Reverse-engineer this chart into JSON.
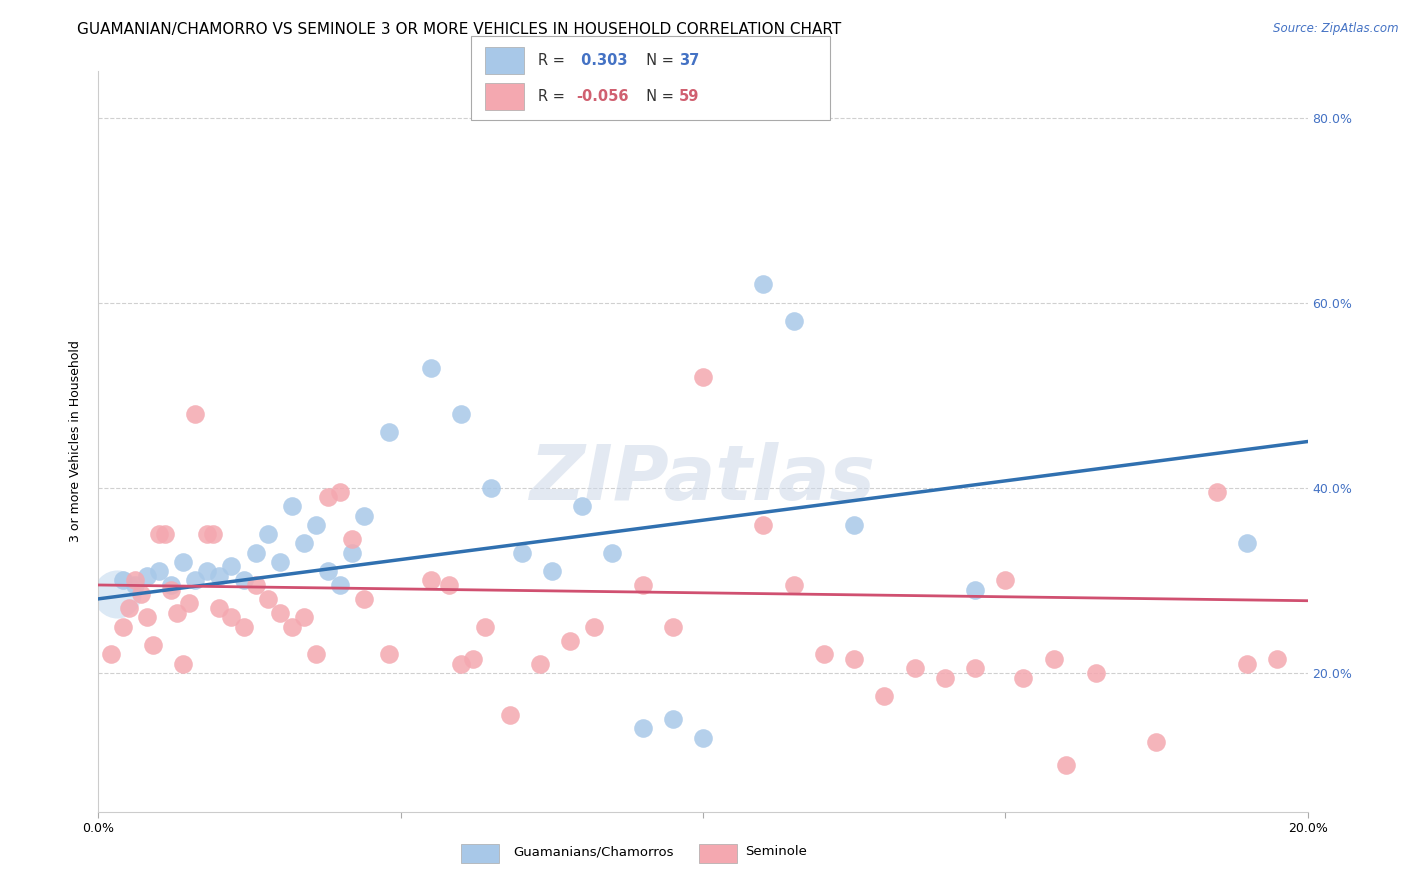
{
  "title": "GUAMANIAN/CHAMORRO VS SEMINOLE 3 OR MORE VEHICLES IN HOUSEHOLD CORRELATION CHART",
  "source": "Source: ZipAtlas.com",
  "ylabel": "3 or more Vehicles in Household",
  "legend_label_blue": "Guamanians/Chamorros",
  "legend_label_pink": "Seminole",
  "blue_color": "#a8c8e8",
  "pink_color": "#f4a8b0",
  "blue_line_color": "#3070b0",
  "pink_line_color": "#d05070",
  "background_color": "#ffffff",
  "watermark": "ZIPatlas",
  "blue_scatter": [
    [
      0.004,
      0.3
    ],
    [
      0.006,
      0.295
    ],
    [
      0.008,
      0.305
    ],
    [
      0.01,
      0.31
    ],
    [
      0.012,
      0.295
    ],
    [
      0.014,
      0.32
    ],
    [
      0.016,
      0.3
    ],
    [
      0.018,
      0.31
    ],
    [
      0.02,
      0.305
    ],
    [
      0.022,
      0.315
    ],
    [
      0.024,
      0.3
    ],
    [
      0.026,
      0.33
    ],
    [
      0.028,
      0.35
    ],
    [
      0.03,
      0.32
    ],
    [
      0.032,
      0.38
    ],
    [
      0.034,
      0.34
    ],
    [
      0.036,
      0.36
    ],
    [
      0.038,
      0.31
    ],
    [
      0.04,
      0.295
    ],
    [
      0.042,
      0.33
    ],
    [
      0.044,
      0.37
    ],
    [
      0.048,
      0.46
    ],
    [
      0.055,
      0.53
    ],
    [
      0.06,
      0.48
    ],
    [
      0.065,
      0.4
    ],
    [
      0.07,
      0.33
    ],
    [
      0.075,
      0.31
    ],
    [
      0.08,
      0.38
    ],
    [
      0.085,
      0.33
    ],
    [
      0.09,
      0.14
    ],
    [
      0.095,
      0.15
    ],
    [
      0.1,
      0.13
    ],
    [
      0.11,
      0.62
    ],
    [
      0.115,
      0.58
    ],
    [
      0.125,
      0.36
    ],
    [
      0.145,
      0.29
    ],
    [
      0.19,
      0.34
    ]
  ],
  "pink_scatter": [
    [
      0.002,
      0.22
    ],
    [
      0.004,
      0.25
    ],
    [
      0.005,
      0.27
    ],
    [
      0.006,
      0.3
    ],
    [
      0.007,
      0.285
    ],
    [
      0.008,
      0.26
    ],
    [
      0.009,
      0.23
    ],
    [
      0.01,
      0.35
    ],
    [
      0.011,
      0.35
    ],
    [
      0.012,
      0.29
    ],
    [
      0.013,
      0.265
    ],
    [
      0.014,
      0.21
    ],
    [
      0.015,
      0.275
    ],
    [
      0.016,
      0.48
    ],
    [
      0.018,
      0.35
    ],
    [
      0.019,
      0.35
    ],
    [
      0.02,
      0.27
    ],
    [
      0.022,
      0.26
    ],
    [
      0.024,
      0.25
    ],
    [
      0.026,
      0.295
    ],
    [
      0.028,
      0.28
    ],
    [
      0.03,
      0.265
    ],
    [
      0.032,
      0.25
    ],
    [
      0.034,
      0.26
    ],
    [
      0.036,
      0.22
    ],
    [
      0.038,
      0.39
    ],
    [
      0.04,
      0.395
    ],
    [
      0.042,
      0.345
    ],
    [
      0.044,
      0.28
    ],
    [
      0.048,
      0.22
    ],
    [
      0.055,
      0.3
    ],
    [
      0.058,
      0.295
    ],
    [
      0.06,
      0.21
    ],
    [
      0.062,
      0.215
    ],
    [
      0.064,
      0.25
    ],
    [
      0.068,
      0.155
    ],
    [
      0.073,
      0.21
    ],
    [
      0.078,
      0.235
    ],
    [
      0.082,
      0.25
    ],
    [
      0.09,
      0.295
    ],
    [
      0.095,
      0.25
    ],
    [
      0.1,
      0.52
    ],
    [
      0.11,
      0.36
    ],
    [
      0.115,
      0.295
    ],
    [
      0.12,
      0.22
    ],
    [
      0.125,
      0.215
    ],
    [
      0.13,
      0.175
    ],
    [
      0.135,
      0.205
    ],
    [
      0.14,
      0.195
    ],
    [
      0.145,
      0.205
    ],
    [
      0.15,
      0.3
    ],
    [
      0.153,
      0.195
    ],
    [
      0.158,
      0.215
    ],
    [
      0.16,
      0.1
    ],
    [
      0.165,
      0.2
    ],
    [
      0.175,
      0.125
    ],
    [
      0.185,
      0.395
    ],
    [
      0.19,
      0.21
    ],
    [
      0.195,
      0.215
    ]
  ],
  "xlim": [
    0.0,
    0.2
  ],
  "ylim": [
    0.05,
    0.85
  ],
  "blue_line_x": [
    0.0,
    0.2
  ],
  "blue_line_y": [
    0.28,
    0.45
  ],
  "pink_line_x": [
    0.0,
    0.2
  ],
  "pink_line_y": [
    0.295,
    0.278
  ],
  "ytick_positions": [
    0.2,
    0.4,
    0.6,
    0.8
  ],
  "xtick_positions": [
    0.0,
    0.05,
    0.1,
    0.15,
    0.2
  ],
  "grid_color": "#d0d0d0",
  "title_fontsize": 11,
  "axis_label_fontsize": 9,
  "tick_fontsize": 9,
  "source_fontsize": 8.5
}
